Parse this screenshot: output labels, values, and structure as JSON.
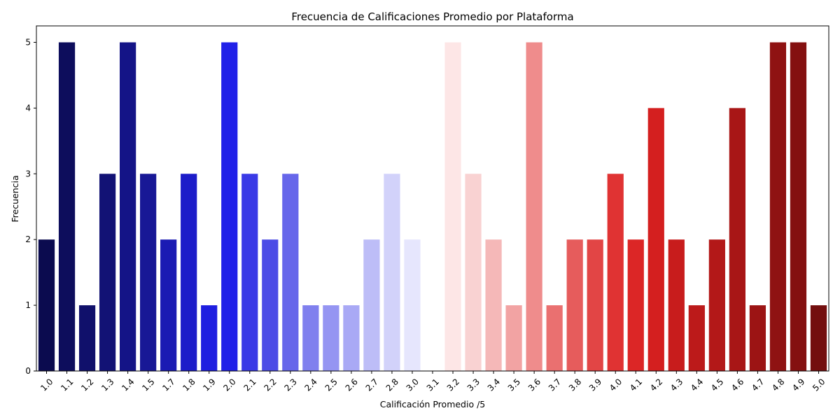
{
  "chart_data": {
    "type": "bar",
    "title": "Frecuencia de Calificaciones Promedio por Plataforma",
    "xlabel": "Calificación Promedio /5",
    "ylabel": "Frecuencia",
    "ylim": [
      0,
      5.25
    ],
    "yticks": [
      "0",
      "1",
      "2",
      "3",
      "4",
      "5"
    ],
    "grid": false,
    "legend": "none",
    "categories": [
      "1.0",
      "1.1",
      "1.2",
      "1.3",
      "1.4",
      "1.5",
      "1.7",
      "1.8",
      "1.9",
      "2.0",
      "2.1",
      "2.2",
      "2.3",
      "2.4",
      "2.5",
      "2.6",
      "2.7",
      "2.8",
      "3.0",
      "3.1",
      "3.2",
      "3.3",
      "3.4",
      "3.5",
      "3.6",
      "3.7",
      "3.8",
      "3.9",
      "4.0",
      "4.1",
      "4.2",
      "4.3",
      "4.4",
      "4.5",
      "4.6",
      "4.7",
      "4.8",
      "4.9",
      "5.0"
    ],
    "values": [
      2,
      5,
      1,
      3,
      5,
      3,
      2,
      3,
      1,
      5,
      3,
      2,
      3,
      1,
      1,
      1,
      2,
      3,
      2,
      0,
      5,
      3,
      2,
      1,
      5,
      1,
      2,
      2,
      3,
      2,
      4,
      2,
      1,
      2,
      4,
      1,
      5,
      5,
      1
    ],
    "colors": [
      "#0b0b4f",
      "#0d0d5c",
      "#10106b",
      "#121275",
      "#141487",
      "#181896",
      "#1a1ab3",
      "#1c1cc9",
      "#1e1ee0",
      "#2020e8",
      "#3a3ae6",
      "#4c4ce6",
      "#6666ea",
      "#8080ee",
      "#9595f2",
      "#a9a9f5",
      "#bdbdf7",
      "#d2d2fa",
      "#e6e6fd",
      "#ffffff",
      "#fde6e6",
      "#f9d2d2",
      "#f5b8b8",
      "#f2a3a3",
      "#ef8c8c",
      "#ea7070",
      "#e65c5c",
      "#e24545",
      "#e03333",
      "#dc2626",
      "#d41f1f",
      "#c81c1c",
      "#bc1a1a",
      "#b31818",
      "#a81616",
      "#9c1414",
      "#8f1212",
      "#841010",
      "#730e0e"
    ]
  }
}
